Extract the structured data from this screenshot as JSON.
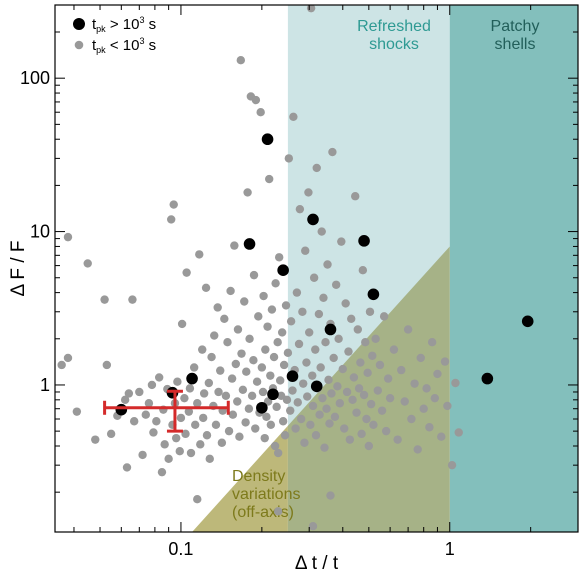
{
  "chart_data": {
    "type": "scatter",
    "title": "",
    "xlabel": "Δ t / t",
    "ylabel": "Δ F / F",
    "xscale": "log",
    "yscale": "log",
    "xlim": [
      0.034,
      3.0
    ],
    "ylim": [
      0.11,
      300
    ],
    "x_tick_labels": [
      {
        "value": 0.1,
        "label": "0.1"
      },
      {
        "value": 1,
        "label": "1"
      }
    ],
    "y_tick_labels": [
      {
        "value": 1,
        "label": "1"
      },
      {
        "value": 10,
        "label": "10"
      },
      {
        "value": 100,
        "label": "100"
      }
    ],
    "grid": false,
    "legend": {
      "placement": "top-left",
      "entries": [
        {
          "series": "black",
          "label_main": "t",
          "label_sub": "pk",
          "label_rest": " > 10",
          "label_sup": "3",
          "label_end": " s"
        },
        {
          "series": "gray",
          "label_main": "t",
          "label_sub": "pk",
          "label_rest": " < 10",
          "label_sup": "3",
          "label_end": " s"
        }
      ]
    },
    "regions": [
      {
        "id": "refreshed",
        "label_lines": [
          "Refreshed",
          "shocks"
        ],
        "x_from": 0.25,
        "x_to": 1.0,
        "color": "#cde4e5",
        "text_color": "#2e9a93"
      },
      {
        "id": "patchy",
        "label_lines": [
          "Patchy",
          "shells"
        ],
        "x_from": 1.0,
        "x_to": 3.0,
        "color": "#83bfbc",
        "text_color": "#225f5a"
      },
      {
        "id": "density",
        "label_lines": [
          "Density",
          "variations",
          "(off-axis)"
        ],
        "polygon": [
          [
            0.11,
            0.11
          ],
          [
            1.0,
            8.0
          ],
          [
            3.0,
            8.0
          ],
          [
            3.0,
            0.11
          ]
        ],
        "color": "#bdb87a",
        "text_color": "#7d7a1b",
        "overlap_color": "#a6b287"
      }
    ],
    "error_bar": {
      "x": 0.095,
      "y": 0.71,
      "x_low": 0.052,
      "x_high": 0.15,
      "y_low": 0.5,
      "y_high": 0.91,
      "color": "#d42a2a"
    },
    "series": [
      {
        "name": "black",
        "color": "#000000",
        "points": [
          [
            0.06,
            0.69
          ],
          [
            0.093,
            0.89
          ],
          [
            0.11,
            1.1
          ],
          [
            0.18,
            8.3
          ],
          [
            0.2,
            0.71
          ],
          [
            0.21,
            40
          ],
          [
            0.22,
            0.87
          ],
          [
            0.24,
            5.6
          ],
          [
            0.26,
            1.14
          ],
          [
            0.31,
            12
          ],
          [
            0.32,
            0.98
          ],
          [
            0.36,
            2.3
          ],
          [
            0.48,
            8.7
          ],
          [
            0.52,
            3.9
          ],
          [
            1.38,
            1.1
          ],
          [
            1.95,
            2.6
          ]
        ]
      },
      {
        "name": "gray",
        "color": "#999999",
        "points": [
          [
            0.036,
            1.35
          ],
          [
            0.038,
            1.5
          ],
          [
            0.038,
            9.2
          ],
          [
            0.041,
            0.67
          ],
          [
            0.045,
            6.2
          ],
          [
            0.048,
            0.44
          ],
          [
            0.052,
            3.6
          ],
          [
            0.053,
            1.35
          ],
          [
            0.055,
            0.48
          ],
          [
            0.058,
            0.63
          ],
          [
            0.062,
            0.8
          ],
          [
            0.063,
            0.29
          ],
          [
            0.064,
            0.88
          ],
          [
            0.066,
            3.6
          ],
          [
            0.067,
            0.58
          ],
          [
            0.07,
            0.9
          ],
          [
            0.072,
            0.35
          ],
          [
            0.074,
            0.64
          ],
          [
            0.076,
            0.76
          ],
          [
            0.078,
            1.0
          ],
          [
            0.079,
            0.49
          ],
          [
            0.081,
            0.58
          ],
          [
            0.083,
            1.12
          ],
          [
            0.085,
            0.27
          ],
          [
            0.086,
            0.69
          ],
          [
            0.087,
            0.41
          ],
          [
            0.089,
            0.94
          ],
          [
            0.09,
            0.33
          ],
          [
            0.092,
            12
          ],
          [
            0.093,
            0.55
          ],
          [
            0.094,
            15
          ],
          [
            0.095,
            0.76
          ],
          [
            0.096,
            0.45
          ],
          [
            0.097,
            1.05
          ],
          [
            0.099,
            0.37
          ],
          [
            0.1,
            0.61
          ],
          [
            0.101,
            2.5
          ],
          [
            0.103,
            0.82
          ],
          [
            0.104,
            0.48
          ],
          [
            0.105,
            5.4
          ],
          [
            0.107,
            0.67
          ],
          [
            0.108,
            0.95
          ],
          [
            0.109,
            0.36
          ],
          [
            0.112,
            1.3
          ],
          [
            0.113,
            0.55
          ],
          [
            0.115,
            0.76
          ],
          [
            0.117,
            7.1
          ],
          [
            0.118,
            0.41
          ],
          [
            0.12,
            1.7
          ],
          [
            0.121,
            0.61
          ],
          [
            0.122,
            0.88
          ],
          [
            0.124,
            4.3
          ],
          [
            0.125,
            0.47
          ],
          [
            0.127,
            1.03
          ],
          [
            0.128,
            0.33
          ],
          [
            0.13,
            1.52
          ],
          [
            0.132,
            0.73
          ],
          [
            0.133,
            2.1
          ],
          [
            0.135,
            0.55
          ],
          [
            0.137,
            3.2
          ],
          [
            0.138,
            0.9
          ],
          [
            0.14,
            1.24
          ],
          [
            0.142,
            0.42
          ],
          [
            0.143,
            0.68
          ],
          [
            0.145,
            2.7
          ],
          [
            0.147,
            0.85
          ],
          [
            0.149,
            1.9
          ],
          [
            0.151,
            0.5
          ],
          [
            0.153,
            4.1
          ],
          [
            0.155,
            1.1
          ],
          [
            0.156,
            0.64
          ],
          [
            0.158,
            8.1
          ],
          [
            0.16,
            1.37
          ],
          [
            0.162,
            0.78
          ],
          [
            0.163,
            2.3
          ],
          [
            0.165,
            0.46
          ],
          [
            0.167,
            131
          ],
          [
            0.168,
            1.6
          ],
          [
            0.17,
            0.93
          ],
          [
            0.172,
            3.5
          ],
          [
            0.174,
            0.57
          ],
          [
            0.175,
            1.22
          ],
          [
            0.177,
            18
          ],
          [
            0.179,
            0.7
          ],
          [
            0.18,
            2.0
          ],
          [
            0.182,
            76
          ],
          [
            0.184,
            0.85
          ],
          [
            0.186,
            1.45
          ],
          [
            0.187,
            5.2
          ],
          [
            0.189,
            0.52
          ],
          [
            0.19,
            72
          ],
          [
            0.192,
            1.05
          ],
          [
            0.194,
            2.8
          ],
          [
            0.196,
            0.66
          ],
          [
            0.198,
            60
          ],
          [
            0.2,
            1.3
          ],
          [
            0.202,
            0.9
          ],
          [
            0.203,
            3.8
          ],
          [
            0.205,
            0.45
          ],
          [
            0.206,
            1.7
          ],
          [
            0.208,
            0.62
          ],
          [
            0.21,
            2.4
          ],
          [
            0.211,
            0.78
          ],
          [
            0.213,
            22
          ],
          [
            0.215,
            1.15
          ],
          [
            0.216,
            0.55
          ],
          [
            0.218,
            3.1
          ],
          [
            0.22,
            0.95
          ],
          [
            0.222,
            1.52
          ],
          [
            0.224,
            0.4
          ],
          [
            0.225,
            4.6
          ],
          [
            0.227,
            0.72
          ],
          [
            0.229,
            1.9
          ],
          [
            0.23,
            0.36
          ],
          [
            0.232,
            6.8
          ],
          [
            0.234,
            1.07
          ],
          [
            0.236,
            0.85
          ],
          [
            0.238,
            2.2
          ],
          [
            0.24,
            0.58
          ],
          [
            0.242,
            1.35
          ],
          [
            0.244,
            0.47
          ],
          [
            0.246,
            3.3
          ],
          [
            0.248,
            0.8
          ],
          [
            0.25,
            1.62
          ],
          [
            0.252,
            30
          ],
          [
            0.255,
            0.68
          ],
          [
            0.257,
            2.6
          ],
          [
            0.26,
            0.92
          ],
          [
            0.262,
            56
          ],
          [
            0.265,
            1.25
          ],
          [
            0.267,
            0.52
          ],
          [
            0.27,
            4.0
          ],
          [
            0.272,
            0.77
          ],
          [
            0.275,
            1.85
          ],
          [
            0.277,
            14
          ],
          [
            0.28,
            0.6
          ],
          [
            0.283,
            3.0
          ],
          [
            0.285,
            1.02
          ],
          [
            0.288,
            0.42
          ],
          [
            0.29,
            7.5
          ],
          [
            0.293,
            1.4
          ],
          [
            0.295,
            0.84
          ],
          [
            0.298,
            18
          ],
          [
            0.3,
            2.2
          ],
          [
            0.303,
            0.55
          ],
          [
            0.305,
            286
          ],
          [
            0.308,
            1.15
          ],
          [
            0.31,
            0.73
          ],
          [
            0.313,
            5.0
          ],
          [
            0.316,
            1.7
          ],
          [
            0.318,
            0.47
          ],
          [
            0.32,
            26
          ],
          [
            0.323,
            0.95
          ],
          [
            0.326,
            2.9
          ],
          [
            0.328,
            0.64
          ],
          [
            0.331,
            1.3
          ],
          [
            0.334,
            10
          ],
          [
            0.336,
            0.82
          ],
          [
            0.339,
            3.7
          ],
          [
            0.342,
            0.39
          ],
          [
            0.345,
            1.9
          ],
          [
            0.348,
            0.7
          ],
          [
            0.351,
            6.1
          ],
          [
            0.354,
            1.08
          ],
          [
            0.357,
            0.56
          ],
          [
            0.36,
            2.5
          ],
          [
            0.363,
            0.88
          ],
          [
            0.366,
            33
          ],
          [
            0.37,
            1.5
          ],
          [
            0.374,
            0.62
          ],
          [
            0.378,
            4.5
          ],
          [
            0.382,
            0.98
          ],
          [
            0.386,
            2.0
          ],
          [
            0.39,
            0.76
          ],
          [
            0.395,
            8.6
          ],
          [
            0.4,
            1.27
          ],
          [
            0.405,
            0.52
          ],
          [
            0.41,
            3.4
          ],
          [
            0.415,
            0.9
          ],
          [
            0.42,
            1.65
          ],
          [
            0.425,
            0.44
          ],
          [
            0.43,
            2.7
          ],
          [
            0.435,
            0.8
          ],
          [
            0.44,
            1.12
          ],
          [
            0.445,
            17
          ],
          [
            0.45,
            0.66
          ],
          [
            0.455,
            2.3
          ],
          [
            0.46,
            0.95
          ],
          [
            0.465,
            1.4
          ],
          [
            0.47,
            0.48
          ],
          [
            0.475,
            5.6
          ],
          [
            0.48,
            0.86
          ],
          [
            0.485,
            1.9
          ],
          [
            0.49,
            0.6
          ],
          [
            0.495,
            1.2
          ],
          [
            0.5,
            0.4
          ],
          [
            0.505,
            3.0
          ],
          [
            0.51,
            0.75
          ],
          [
            0.515,
            1.55
          ],
          [
            0.52,
            0.55
          ],
          [
            0.53,
            2.0
          ],
          [
            0.54,
            0.92
          ],
          [
            0.55,
            1.35
          ],
          [
            0.56,
            0.68
          ],
          [
            0.57,
            2.8
          ],
          [
            0.58,
            0.5
          ],
          [
            0.59,
            1.1
          ],
          [
            0.6,
            0.82
          ],
          [
            0.62,
            1.7
          ],
          [
            0.64,
            0.44
          ],
          [
            0.66,
            1.25
          ],
          [
            0.68,
            0.78
          ],
          [
            0.7,
            2.3
          ],
          [
            0.72,
            0.6
          ],
          [
            0.74,
            1.02
          ],
          [
            0.76,
            0.38
          ],
          [
            0.78,
            1.5
          ],
          [
            0.8,
            0.7
          ],
          [
            0.82,
            0.95
          ],
          [
            0.84,
            0.53
          ],
          [
            0.86,
            1.9
          ],
          [
            0.88,
            0.82
          ],
          [
            0.9,
            1.18
          ],
          [
            0.93,
            0.46
          ],
          [
            0.96,
            1.42
          ],
          [
            0.98,
            0.73
          ],
          [
            1.02,
            0.3
          ],
          [
            1.05,
            1.03
          ],
          [
            1.08,
            0.49
          ],
          [
            0.115,
            0.18
          ],
          [
            0.23,
            0.15
          ],
          [
            0.31,
            0.12
          ],
          [
            0.36,
            0.19
          ]
        ]
      }
    ]
  }
}
